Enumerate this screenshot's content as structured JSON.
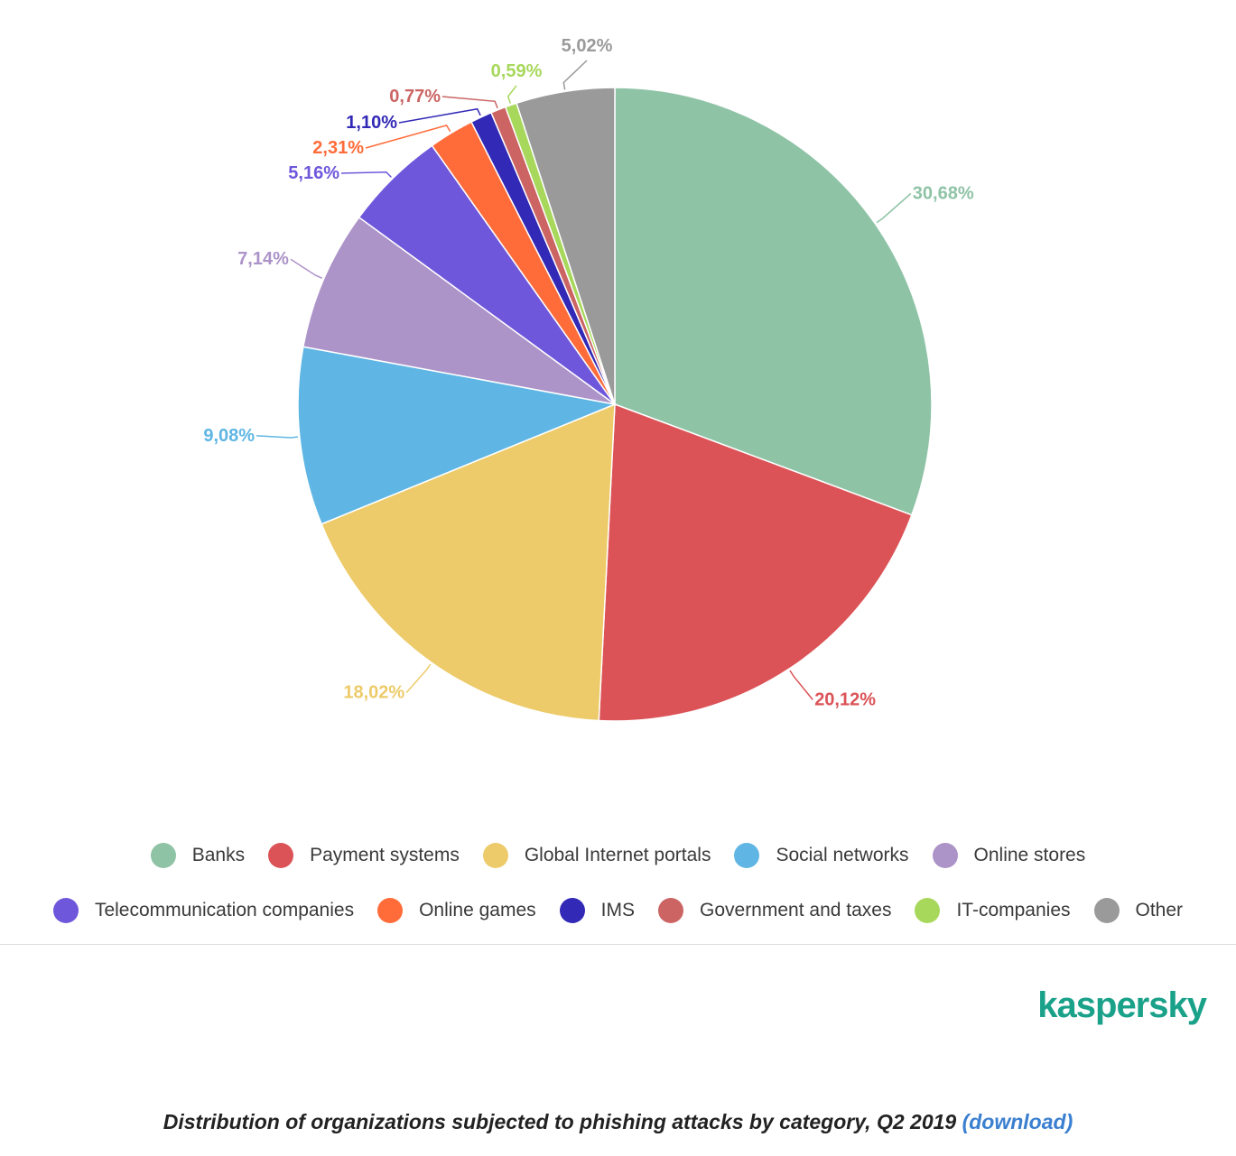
{
  "chart_data": {
    "type": "pie",
    "slices": [
      {
        "label": "Banks",
        "value": 30.68,
        "display": "30,68%",
        "color": "#8fc3a6"
      },
      {
        "label": "Payment systems",
        "value": 20.12,
        "display": "20,12%",
        "color": "#db5357"
      },
      {
        "label": "Global Internet portals",
        "value": 18.02,
        "display": "18,02%",
        "color": "#edcb6a"
      },
      {
        "label": "Social networks",
        "value": 9.08,
        "display": "9,08%",
        "color": "#5fb6e4"
      },
      {
        "label": "Online stores",
        "value": 7.14,
        "display": "7,14%",
        "color": "#ac93c8"
      },
      {
        "label": "Telecommunication companies",
        "value": 5.16,
        "display": "5,16%",
        "color": "#6f57db"
      },
      {
        "label": "Online games",
        "value": 2.31,
        "display": "2,31%",
        "color": "#ff6c3a"
      },
      {
        "label": "IMS",
        "value": 1.1,
        "display": "1,10%",
        "color": "#3229b6"
      },
      {
        "label": "Government and taxes",
        "value": 0.77,
        "display": "0,77%",
        "color": "#cc6464"
      },
      {
        "label": "IT-companies",
        "value": 0.59,
        "display": "0,59%",
        "color": "#a7d85b"
      },
      {
        "label": "Other",
        "value": 5.02,
        "display": "5,02%",
        "color": "#9a9a9a"
      }
    ],
    "legend_position": "bottom"
  },
  "legend": {
    "row1": [
      {
        "label": "Banks",
        "color": "#8fc3a6"
      },
      {
        "label": "Payment systems",
        "color": "#db5357"
      },
      {
        "label": "Global Internet portals",
        "color": "#edcb6a"
      },
      {
        "label": "Social networks",
        "color": "#5fb6e4"
      },
      {
        "label": "Online stores",
        "color": "#ac93c8"
      }
    ],
    "row2": [
      {
        "label": "Telecommunication companies",
        "color": "#6f57db"
      },
      {
        "label": "Online games",
        "color": "#ff6c3a"
      },
      {
        "label": "IMS",
        "color": "#3229b6"
      },
      {
        "label": "Government and taxes",
        "color": "#cc6464"
      },
      {
        "label": "IT-companies",
        "color": "#a7d85b"
      },
      {
        "label": "Other",
        "color": "#9a9a9a"
      }
    ]
  },
  "brand": {
    "name": "kaspersky",
    "color": "#1aa18a"
  },
  "caption": {
    "text": "Distribution of organizations subjected to phishing attacks by category, Q2 2019",
    "link_text": "(download)",
    "link_color": "#3a7fd0"
  }
}
